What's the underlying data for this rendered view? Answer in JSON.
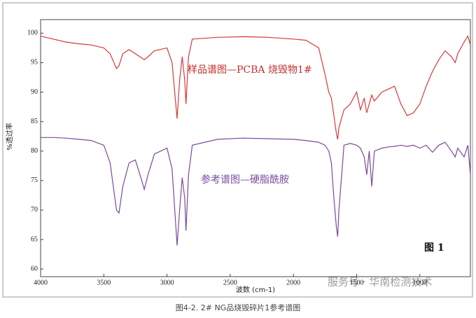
{
  "chart_data": {
    "type": "line",
    "x_label": "波数 (cm-1)",
    "y_label": "%透过率",
    "annotations": [
      "样品谱图—PCBA 烧毁物1#",
      "参考谱图—硬脂酰胺",
      "图 1",
      "服务号 · 华南检测技术"
    ],
    "caption": "图4-2.    2# NG品烧毁碎片1参考谱图",
    "xlim": [
      4000,
      600
    ],
    "ylim": [
      58.7,
      102.3
    ],
    "xticks": [
      4000,
      3500,
      3000,
      2500,
      2000,
      1500,
      1000
    ],
    "yticks": [
      60,
      65,
      70,
      75,
      80,
      85,
      90,
      95,
      100
    ],
    "x": [
      4000,
      3900,
      3800,
      3700,
      3600,
      3500,
      3450,
      3400,
      3380,
      3350,
      3300,
      3250,
      3200,
      3180,
      3150,
      3100,
      3000,
      2960,
      2920,
      2900,
      2880,
      2860,
      2850,
      2830,
      2800,
      2600,
      2400,
      2200,
      2000,
      1900,
      1800,
      1750,
      1720,
      1700,
      1680,
      1660,
      1650,
      1640,
      1600,
      1550,
      1500,
      1470,
      1440,
      1420,
      1400,
      1380,
      1360,
      1300,
      1250,
      1200,
      1150,
      1100,
      1050,
      1000,
      950,
      900,
      850,
      800,
      750,
      720,
      700,
      650,
      620,
      600
    ],
    "series": [
      {
        "color": "#d63a3a",
        "values": [
          99.5,
          99,
          98.5,
          98.2,
          98,
          97.5,
          96.5,
          94,
          94.5,
          96.5,
          97.2,
          96.5,
          95.8,
          95.5,
          96,
          97,
          97.5,
          95,
          85.5,
          92,
          96,
          92,
          88,
          96,
          99,
          99.3,
          99.4,
          99.3,
          99,
          98.8,
          97.5,
          93,
          90,
          89,
          86,
          83,
          82,
          84,
          87,
          88,
          90,
          87,
          89,
          86.5,
          88,
          89.5,
          88.5,
          90,
          90.5,
          91,
          88,
          86,
          86.5,
          88,
          91,
          93.5,
          95.5,
          97,
          96,
          95,
          96.5,
          98.5,
          99.5,
          98
        ]
      },
      {
        "color": "#7b4a9a",
        "values": [
          82.3,
          82.3,
          82.2,
          82,
          81.8,
          81,
          78,
          70,
          69.5,
          74,
          78,
          78.5,
          75,
          73.5,
          76,
          79.5,
          80.5,
          77,
          64,
          70,
          75.5,
          72,
          66.5,
          76,
          81,
          82,
          82.2,
          82.1,
          82,
          81.8,
          81.5,
          81,
          80,
          78,
          72,
          67,
          65.5,
          70,
          81,
          81.3,
          81,
          80.5,
          79,
          76,
          80,
          74,
          80,
          80.5,
          80.7,
          80.8,
          81,
          80.8,
          81,
          80.5,
          81,
          79.8,
          81,
          81.5,
          80,
          79,
          80.5,
          79,
          81,
          76
        ]
      }
    ]
  }
}
